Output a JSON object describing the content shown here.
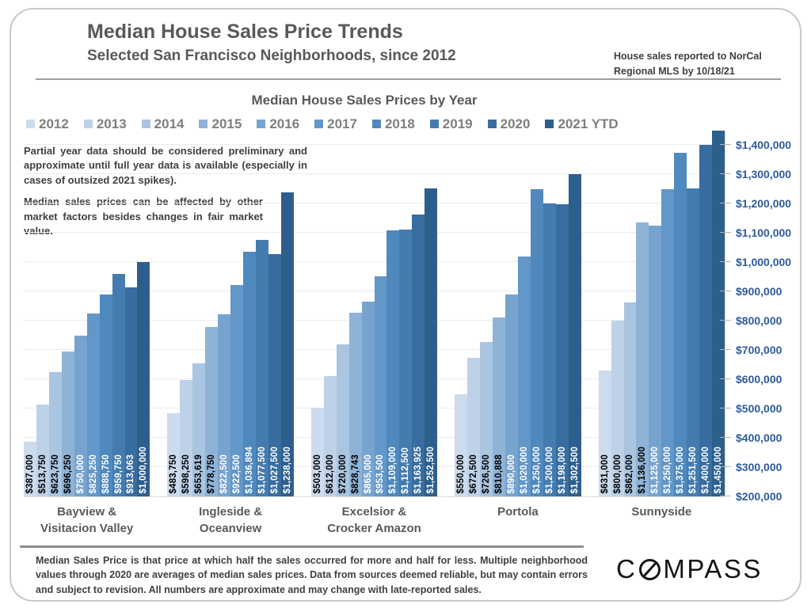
{
  "header": {
    "title": "Median House Sales Price Trends",
    "subtitle": "Selected San Francisco Neighborhoods, since 2012",
    "note_line1": "House sales reported to NorCal",
    "note_line2": "Regional MLS by 10/18/21"
  },
  "annotations": {
    "para1": "Partial year data should be considered preliminary and approximate until full year data is available (especially in cases of outsized 2021 spikes).",
    "para2": "Median sales prices can be affected by other market factors besides changes in fair market value."
  },
  "chart_data": {
    "type": "bar",
    "title": "Median House Sales Prices by Year",
    "legend_position": "top",
    "grid": true,
    "value_labels": "rotated-90-inside-bar",
    "categories": [
      "Bayview & Visitacion Valley",
      "Ingleside & Oceanview",
      "Excelsior & Crocker Amazon",
      "Portola",
      "Sunnyside"
    ],
    "category_lines": [
      [
        "Bayview &",
        "Visitacion Valley"
      ],
      [
        "Ingleside &",
        "Oceanview"
      ],
      [
        "Excelsior &",
        "Crocker Amazon"
      ],
      [
        "Portola"
      ],
      [
        "Sunnyside"
      ]
    ],
    "series": [
      {
        "name": "2012",
        "color": "#ccdbed",
        "label_color": "#000000",
        "values": [
          387000,
          483750,
          503000,
          550000,
          631000
        ]
      },
      {
        "name": "2013",
        "color": "#bdd2e8",
        "label_color": "#000000",
        "values": [
          513750,
          598250,
          612000,
          672500,
          800000
        ]
      },
      {
        "name": "2014",
        "color": "#a9c5e0",
        "label_color": "#000000",
        "values": [
          623750,
          653619,
          720000,
          726500,
          862000
        ]
      },
      {
        "name": "2015",
        "color": "#8fb3d7",
        "label_color": "#000000",
        "values": [
          696250,
          778750,
          828743,
          810888,
          1136000
        ]
      },
      {
        "name": "2016",
        "color": "#77a4ce",
        "label_color": "#ffffff",
        "values": [
          750000,
          822500,
          865000,
          890000,
          1125000
        ]
      },
      {
        "name": "2017",
        "color": "#6397c7",
        "label_color": "#ffffff",
        "values": [
          825250,
          922500,
          953500,
          1020000,
          1250000
        ]
      },
      {
        "name": "2018",
        "color": "#5089bd",
        "label_color": "#ffffff",
        "values": [
          888750,
          1036894,
          1109000,
          1250000,
          1375000
        ]
      },
      {
        "name": "2019",
        "color": "#447cb0",
        "label_color": "#ffffff",
        "values": [
          959750,
          1077500,
          1112500,
          1200000,
          1251500
        ]
      },
      {
        "name": "2020",
        "color": "#386d9f",
        "label_color": "#ffffff",
        "values": [
          913063,
          1027500,
          1163925,
          1198000,
          1400000
        ]
      },
      {
        "name": "2021 YTD",
        "color": "#2d5f8d",
        "label_color": "#ffffff",
        "values": [
          1000000,
          1238000,
          1252500,
          1302500,
          1450000
        ]
      }
    ],
    "ylim": [
      200000,
      1450000
    ],
    "tick_step": 100000,
    "y_ticks": [
      200000,
      300000,
      400000,
      500000,
      600000,
      700000,
      800000,
      900000,
      1000000,
      1100000,
      1200000,
      1300000,
      1400000
    ],
    "y_tick_labels": [
      "$200,000",
      "$300,000",
      "$400,000",
      "$500,000",
      "$600,000",
      "$700,000",
      "$800,000",
      "$900,000",
      "$1,000,000",
      "$1,100,000",
      "$1,200,000",
      "$1,300,000",
      "$1,400,000"
    ],
    "value_format": "$#,##0",
    "axis_label_color": "#2e5b9c"
  },
  "footer": {
    "disclaimer": "Median Sales Price is that price at which half the sales occurred for more and half for less. Multiple neighborhood values through 2020 are averages of median sales prices. Data from sources deemed reliable, but may contain errors and subject to revision.  All numbers are approximate and may change with late-reported sales.",
    "logo_prefix": "C",
    "logo_suffix": "MPASS"
  }
}
